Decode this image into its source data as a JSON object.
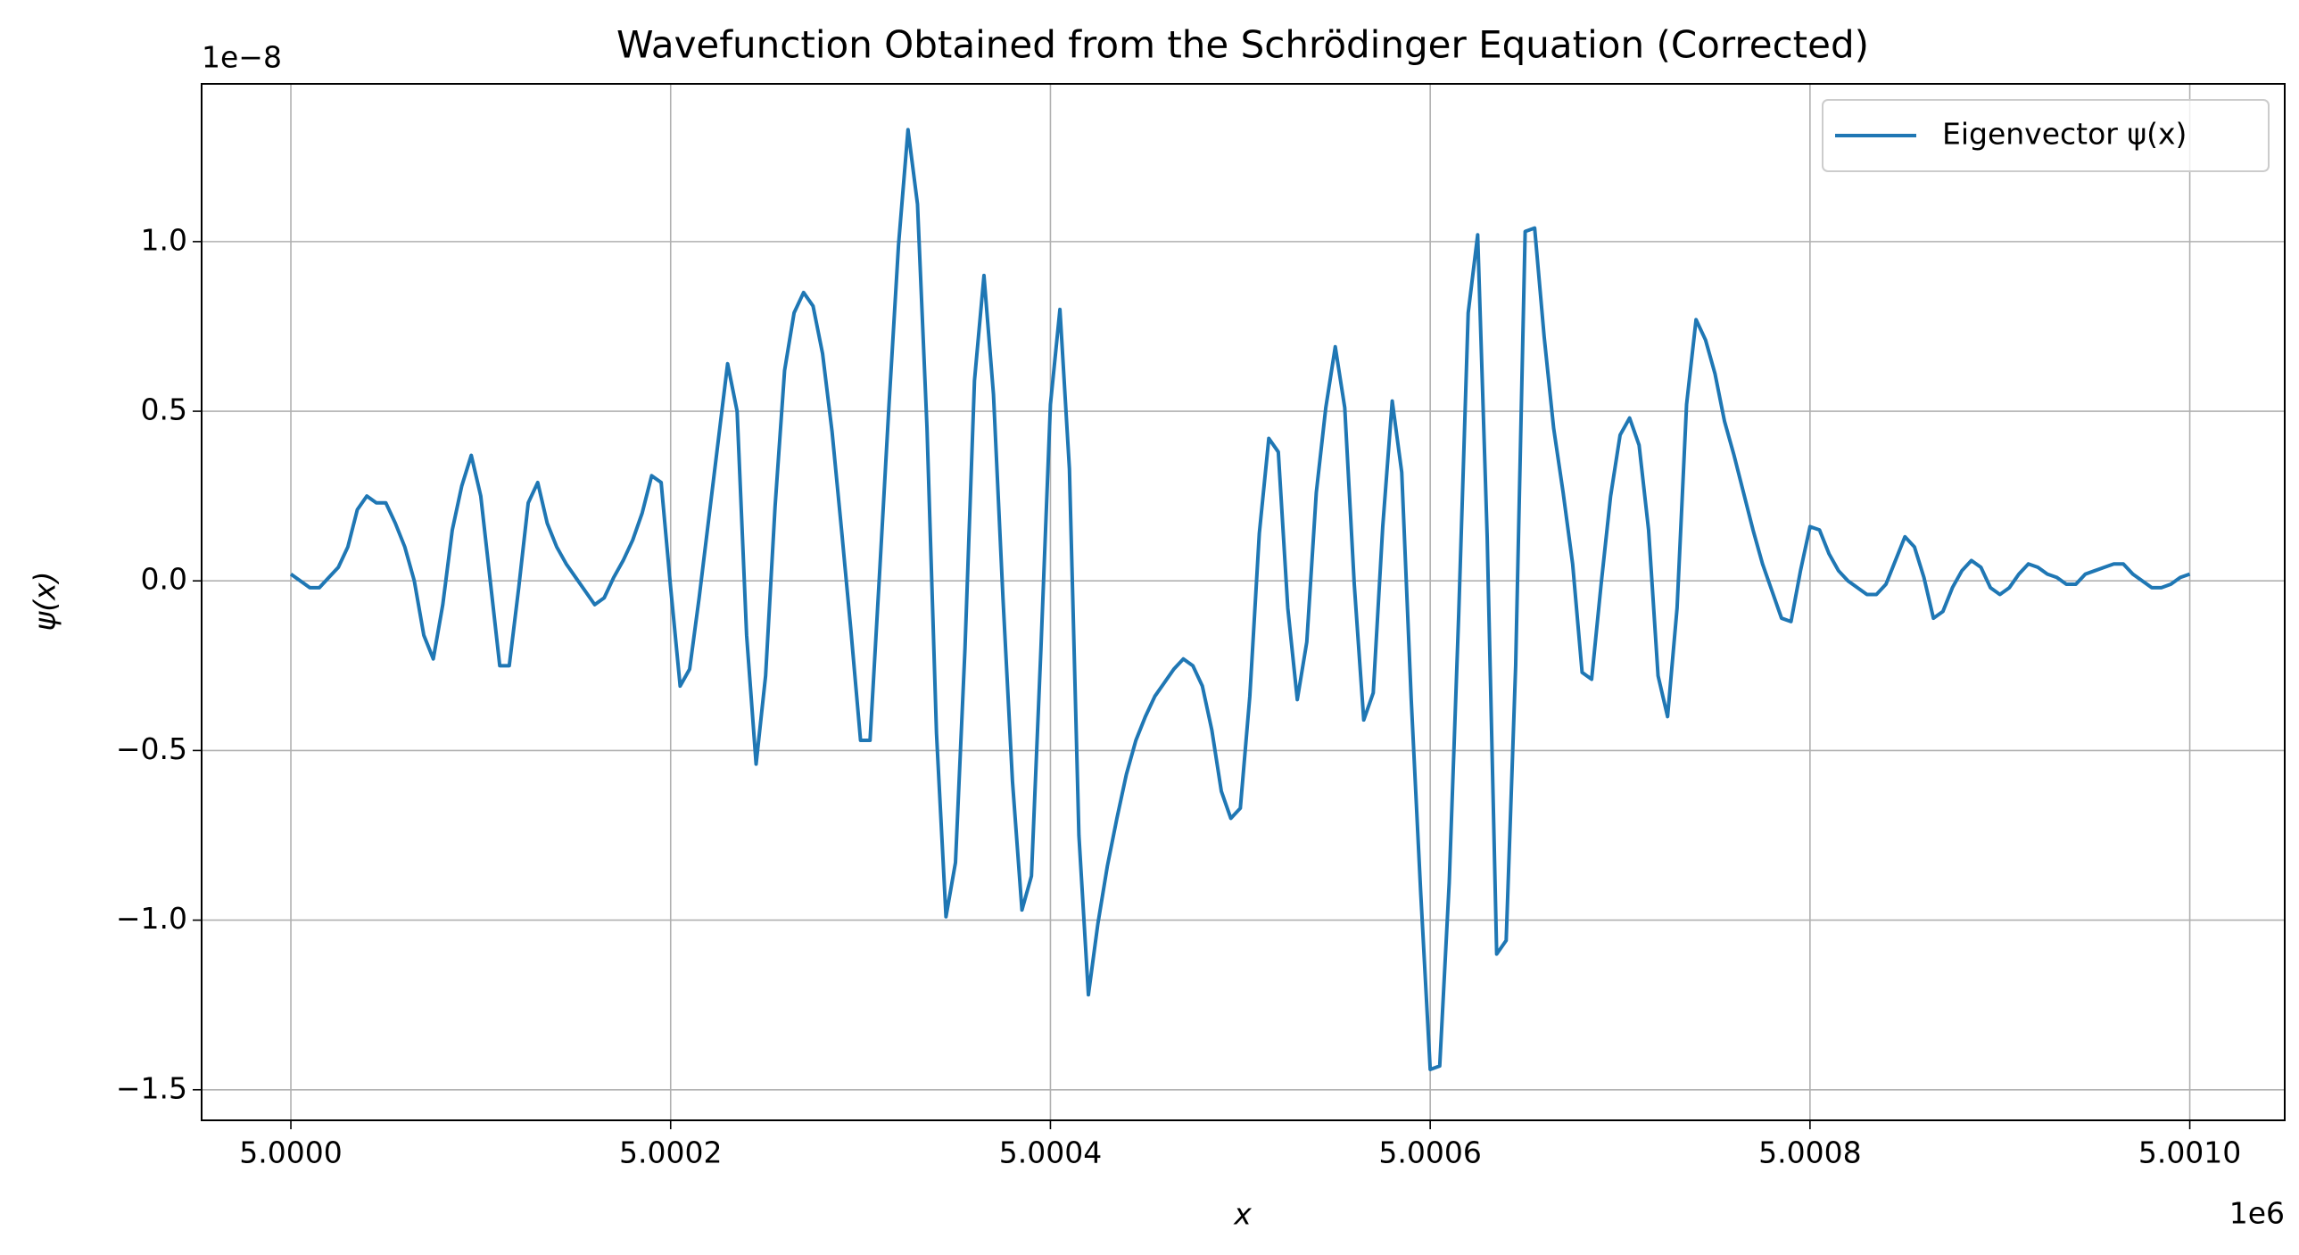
{
  "chart_data": {
    "type": "line",
    "title": "Wavefunction Obtained from the Schrödinger Equation (Corrected)",
    "x_label": "x",
    "y_label": "ψ(x)",
    "x_offset_label": "1e6",
    "y_offset_label": "1e−8",
    "xlim": [
      4999953,
      5001050
    ],
    "ylim": [
      -1.59,
      1.465
    ],
    "xticks": [
      {
        "value": 5000000,
        "label": "5.0000"
      },
      {
        "value": 5000200,
        "label": "5.0002"
      },
      {
        "value": 5000400,
        "label": "5.0004"
      },
      {
        "value": 5000600,
        "label": "5.0006"
      },
      {
        "value": 5000800,
        "label": "5.0008"
      },
      {
        "value": 5001000,
        "label": "5.0010"
      }
    ],
    "yticks": [
      {
        "value": -1.5,
        "label": "−1.5"
      },
      {
        "value": -1.0,
        "label": "−1.0"
      },
      {
        "value": -0.5,
        "label": "−0.5"
      },
      {
        "value": 0,
        "label": "0.0"
      },
      {
        "value": 0.5,
        "label": "0.5"
      },
      {
        "value": 1.0,
        "label": "1.0"
      }
    ],
    "grid": true,
    "legend": "upper right",
    "x": [
      5000000,
      5000005,
      5000010,
      5000015,
      5000020,
      5000025,
      5000030,
      5000035,
      5000040,
      5000045,
      5000050,
      5000055,
      5000060,
      5000065,
      5000070,
      5000075,
      5000080,
      5000085,
      5000090,
      5000095,
      5000100,
      5000105,
      5000110,
      5000115,
      5000120,
      5000125,
      5000130,
      5000135,
      5000140,
      5000145,
      5000150,
      5000155,
      5000160,
      5000165,
      5000170,
      5000175,
      5000180,
      5000185,
      5000190,
      5000195,
      5000200,
      5000205,
      5000210,
      5000215,
      5000220,
      5000225,
      5000230,
      5000235,
      5000240,
      5000245,
      5000250,
      5000255,
      5000260,
      5000265,
      5000270,
      5000275,
      5000280,
      5000285,
      5000290,
      5000295,
      5000300,
      5000305,
      5000310,
      5000315,
      5000320,
      5000325,
      5000330,
      5000335,
      5000340,
      5000345,
      5000350,
      5000355,
      5000360,
      5000365,
      5000370,
      5000375,
      5000380,
      5000385,
      5000390,
      5000395,
      5000400,
      5000405,
      5000410,
      5000415,
      5000420,
      5000425,
      5000430,
      5000435,
      5000440,
      5000445,
      5000450,
      5000455,
      5000460,
      5000465,
      5000470,
      5000475,
      5000480,
      5000485,
      5000490,
      5000495,
      5000500,
      5000505,
      5000510,
      5000515,
      5000520,
      5000525,
      5000530,
      5000535,
      5000540,
      5000545,
      5000550,
      5000555,
      5000560,
      5000565,
      5000570,
      5000575,
      5000580,
      5000585,
      5000590,
      5000595,
      5000600,
      5000605,
      5000610,
      5000615,
      5000620,
      5000625,
      5000630,
      5000635,
      5000640,
      5000645,
      5000650,
      5000655,
      5000660,
      5000665,
      5000670,
      5000675,
      5000680,
      5000685,
      5000690,
      5000695,
      5000700,
      5000705,
      5000710,
      5000715,
      5000720,
      5000725,
      5000730,
      5000735,
      5000740,
      5000745,
      5000750,
      5000755,
      5000760,
      5000765,
      5000770,
      5000775,
      5000780,
      5000785,
      5000790,
      5000795,
      5000800,
      5000805,
      5000810,
      5000815,
      5000820,
      5000825,
      5000830,
      5000835,
      5000840,
      5000845,
      5000850,
      5000855,
      5000860,
      5000865,
      5000870,
      5000875,
      5000880,
      5000885,
      5000890,
      5000895,
      5000900,
      5000905,
      5000910,
      5000915,
      5000920,
      5000925,
      5000930,
      5000935,
      5000940,
      5000945,
      5000950,
      5000955,
      5000960,
      5000965,
      5000970,
      5000975,
      5000980,
      5000985,
      5000990,
      5000995,
      5001000
    ],
    "series": [
      {
        "name": "Eigenvector ψ(x)",
        "color": "#1f77b4",
        "values": [
          0.02,
          0.0,
          -0.02,
          -0.02,
          0.01,
          0.04,
          0.1,
          0.21,
          0.25,
          0.23,
          0.23,
          0.17,
          0.1,
          0.0,
          -0.16,
          -0.23,
          -0.07,
          0.15,
          0.28,
          0.37,
          0.25,
          0.0,
          -0.25,
          -0.25,
          -0.02,
          0.23,
          0.29,
          0.17,
          0.1,
          0.05,
          0.01,
          -0.03,
          -0.07,
          -0.05,
          0.01,
          0.06,
          0.12,
          0.2,
          0.31,
          0.29,
          -0.02,
          -0.31,
          -0.26,
          -0.05,
          0.18,
          0.41,
          0.64,
          0.5,
          -0.16,
          -0.54,
          -0.28,
          0.22,
          0.62,
          0.79,
          0.85,
          0.81,
          0.67,
          0.44,
          0.15,
          -0.15,
          -0.47,
          -0.47,
          0.02,
          0.52,
          0.99,
          1.33,
          1.11,
          0.45,
          -0.45,
          -0.99,
          -0.83,
          -0.2,
          0.59,
          0.9,
          0.55,
          -0.05,
          -0.59,
          -0.97,
          -0.87,
          -0.2,
          0.52,
          0.8,
          0.33,
          -0.75,
          -1.22,
          -1.01,
          -0.84,
          -0.7,
          -0.57,
          -0.47,
          -0.4,
          -0.34,
          -0.3,
          -0.26,
          -0.23,
          -0.25,
          -0.31,
          -0.44,
          -0.62,
          -0.7,
          -0.67,
          -0.34,
          0.14,
          0.42,
          0.38,
          -0.08,
          -0.35,
          -0.18,
          0.26,
          0.51,
          0.69,
          0.51,
          -0.01,
          -0.41,
          -0.33,
          0.16,
          0.53,
          0.32,
          -0.35,
          -0.92,
          -1.44,
          -1.43,
          -0.89,
          -0.1,
          0.79,
          1.02,
          0.13,
          -1.1,
          -1.06,
          -0.25,
          1.03,
          1.04,
          0.72,
          0.45,
          0.26,
          0.05,
          -0.27,
          -0.29,
          -0.01,
          0.25,
          0.43,
          0.48,
          0.4,
          0.15,
          -0.28,
          -0.4,
          -0.08,
          0.52,
          0.77,
          0.71,
          0.61,
          0.47,
          0.37,
          0.26,
          0.15,
          0.05,
          -0.03,
          -0.11,
          -0.12,
          0.03,
          0.16,
          0.15,
          0.08,
          0.03,
          0.0,
          -0.02,
          -0.04,
          -0.04,
          -0.01,
          0.06,
          0.13,
          0.1,
          0.01,
          -0.11,
          -0.09,
          -0.02,
          0.03,
          0.06,
          0.04,
          -0.02,
          -0.04,
          -0.02,
          0.02,
          0.05,
          0.04,
          0.02,
          0.01,
          -0.01,
          -0.01,
          0.02,
          0.03,
          0.04,
          0.05,
          0.05,
          0.02,
          0.0,
          -0.02,
          -0.02,
          -0.01,
          0.01,
          0.02
        ]
      }
    ]
  }
}
